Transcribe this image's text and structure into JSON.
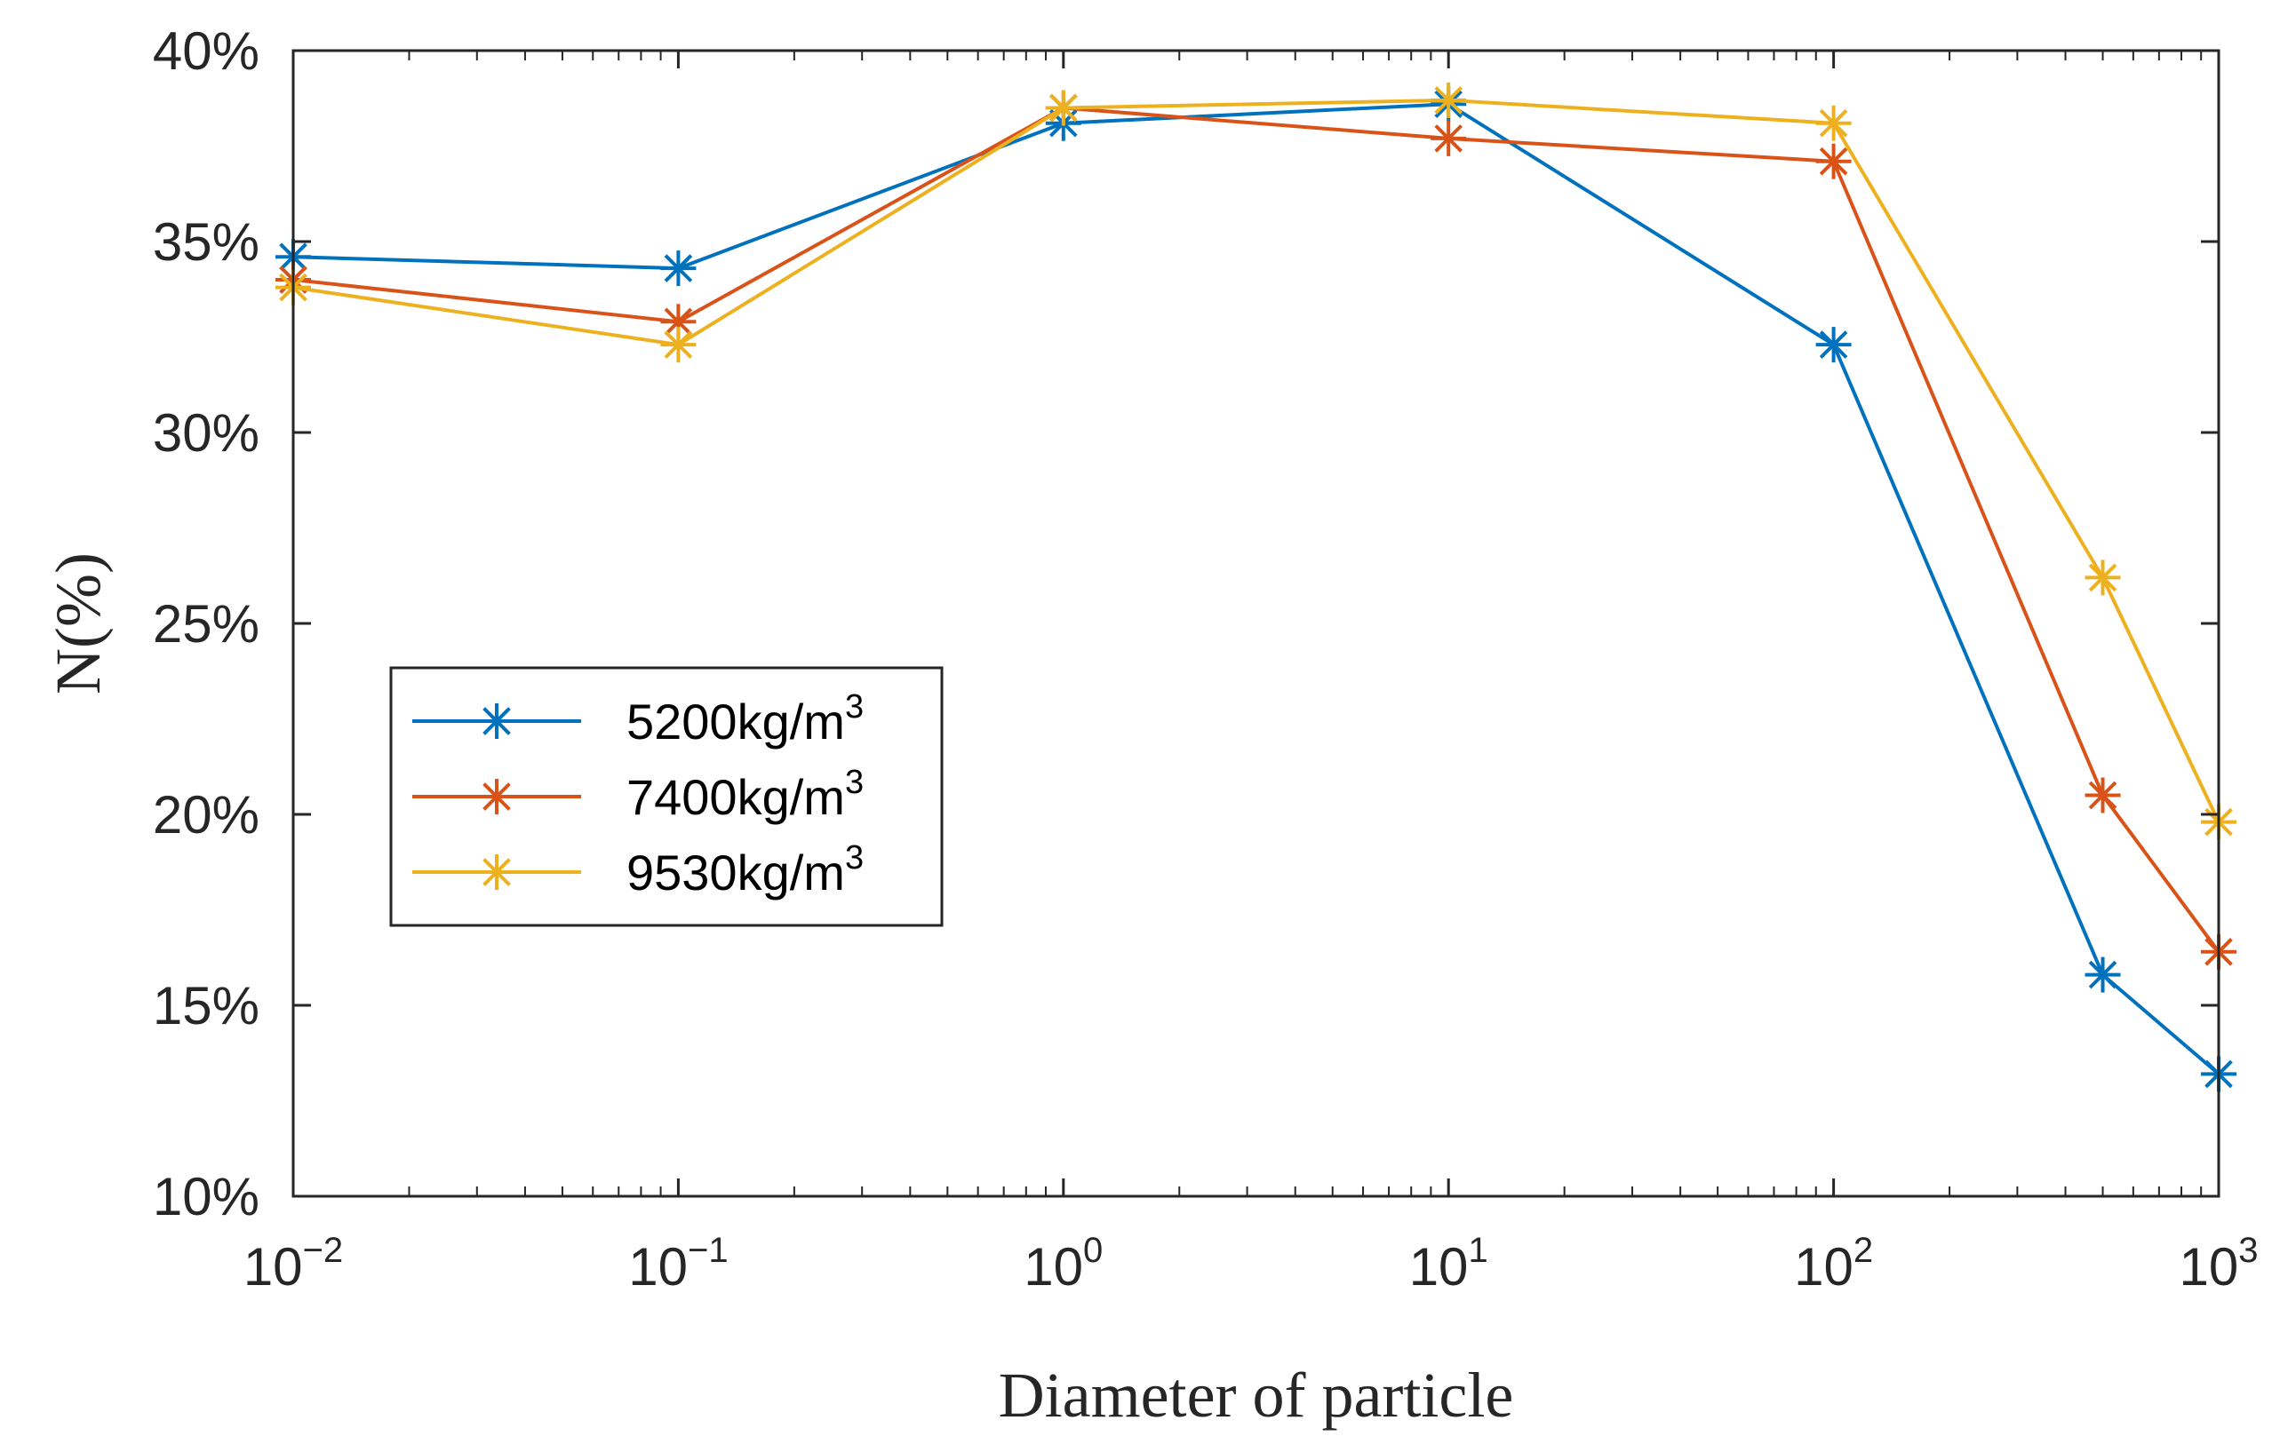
{
  "chart_data": {
    "type": "line",
    "title": "",
    "xlabel": "Diameter of particle",
    "ylabel": "N(%)",
    "x_scale": "log",
    "xlim": [
      0.01,
      1000
    ],
    "ylim": [
      10,
      40
    ],
    "x_ticks": [
      {
        "value": 0.01,
        "base": "10",
        "exp": "−2"
      },
      {
        "value": 0.1,
        "base": "10",
        "exp": "−1"
      },
      {
        "value": 1,
        "base": "10",
        "exp": "0"
      },
      {
        "value": 10,
        "base": "10",
        "exp": "1"
      },
      {
        "value": 100,
        "base": "10",
        "exp": "2"
      },
      {
        "value": 1000,
        "base": "10",
        "exp": "3"
      }
    ],
    "y_ticks": [
      {
        "value": 10,
        "label": "10%"
      },
      {
        "value": 15,
        "label": "15%"
      },
      {
        "value": 20,
        "label": "20%"
      },
      {
        "value": 25,
        "label": "25%"
      },
      {
        "value": 30,
        "label": "30%"
      },
      {
        "value": 35,
        "label": "35%"
      },
      {
        "value": 40,
        "label": "40%"
      }
    ],
    "grid": false,
    "legend_position": "middle-left",
    "x": [
      0.01,
      0.1,
      1,
      10,
      100,
      500,
      1000
    ],
    "series": [
      {
        "name": "5200kg/m",
        "name_sup": "3",
        "color": "#0072BD",
        "marker": "asterisk",
        "values": [
          34.6,
          34.3,
          38.1,
          38.6,
          32.3,
          15.8,
          13.2
        ]
      },
      {
        "name": "7400kg/m",
        "name_sup": "3",
        "color": "#D95319",
        "marker": "asterisk",
        "values": [
          34.0,
          32.9,
          38.5,
          37.7,
          37.1,
          20.5,
          16.4
        ]
      },
      {
        "name": "9530kg/m",
        "name_sup": "3",
        "color": "#EDB120",
        "marker": "asterisk",
        "values": [
          33.8,
          32.3,
          38.5,
          38.7,
          38.1,
          26.2,
          19.8
        ]
      }
    ]
  }
}
